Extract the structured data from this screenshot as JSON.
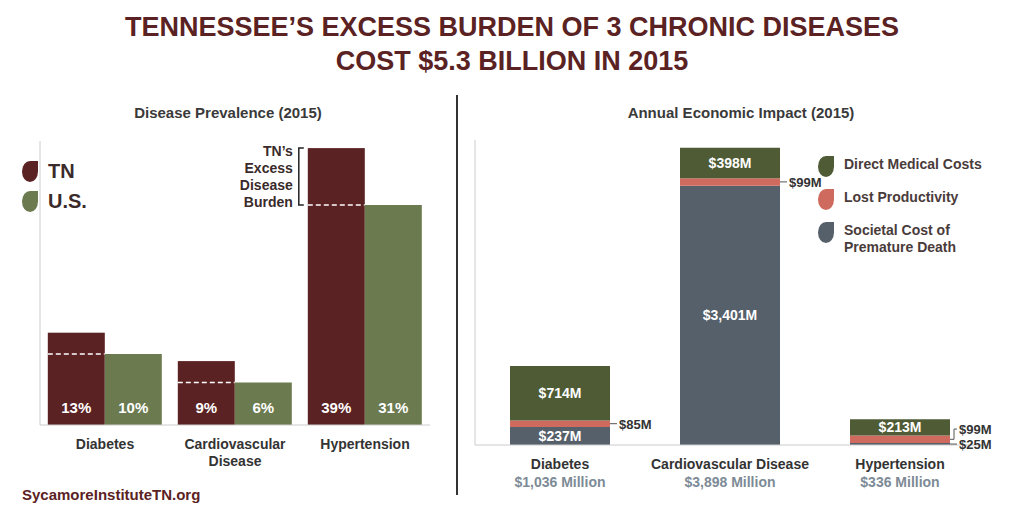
{
  "title": "TENNESSEE’S EXCESS BURDEN OF 3 CHRONIC DISEASES COST $5.3 BILLION IN 2015",
  "source": "SycamoreInstituteTN.org",
  "chart_data": [
    {
      "type": "bar",
      "title": "Disease Prevalence (2015)",
      "categories": [
        "Diabetes",
        "Cardiovascular Disease",
        "Hypertension"
      ],
      "series": [
        {
          "name": "TN",
          "color": "#5b2223",
          "values": [
            13,
            9,
            39
          ],
          "value_labels": [
            "13%",
            "9%",
            "39%"
          ]
        },
        {
          "name": "U.S.",
          "color": "#6b7a4f",
          "values": [
            10,
            6,
            31
          ],
          "value_labels": [
            "10%",
            "6%",
            "31%"
          ]
        }
      ],
      "ylim": [
        0,
        40
      ],
      "tick_labels": "x",
      "data_labels": true,
      "legend": "upper left",
      "annotations": [
        {
          "text": "TN’s Excess Disease Burden",
          "category": "Hypertension"
        }
      ]
    },
    {
      "type": "bar",
      "stacked": true,
      "title": "Annual Economic Impact (2015)",
      "categories": [
        "Diabetes",
        "Cardiovascular Disease",
        "Hypertension"
      ],
      "category_totals": [
        "$1,036 Million",
        "$3,898 Million",
        "$336 Million"
      ],
      "series": [
        {
          "name": "Direct Medical Costs",
          "color": "#4e5b35",
          "values": [
            714,
            398,
            213
          ],
          "value_labels": [
            "$714M",
            "$398M",
            "$213M"
          ]
        },
        {
          "name": "Lost Productivity",
          "color": "#cf6b5e",
          "values": [
            85,
            99,
            99
          ],
          "value_labels": [
            "$85M",
            "$99M",
            "$99M"
          ]
        },
        {
          "name": "Societal Cost of Premature Death",
          "color": "#56606a",
          "values": [
            237,
            3401,
            25
          ],
          "value_labels": [
            "$237M",
            "$3,401M",
            "$25M"
          ]
        }
      ],
      "ylim": [
        0,
        4000
      ],
      "tick_labels": "x",
      "data_labels": true,
      "legend": "upper right"
    }
  ]
}
